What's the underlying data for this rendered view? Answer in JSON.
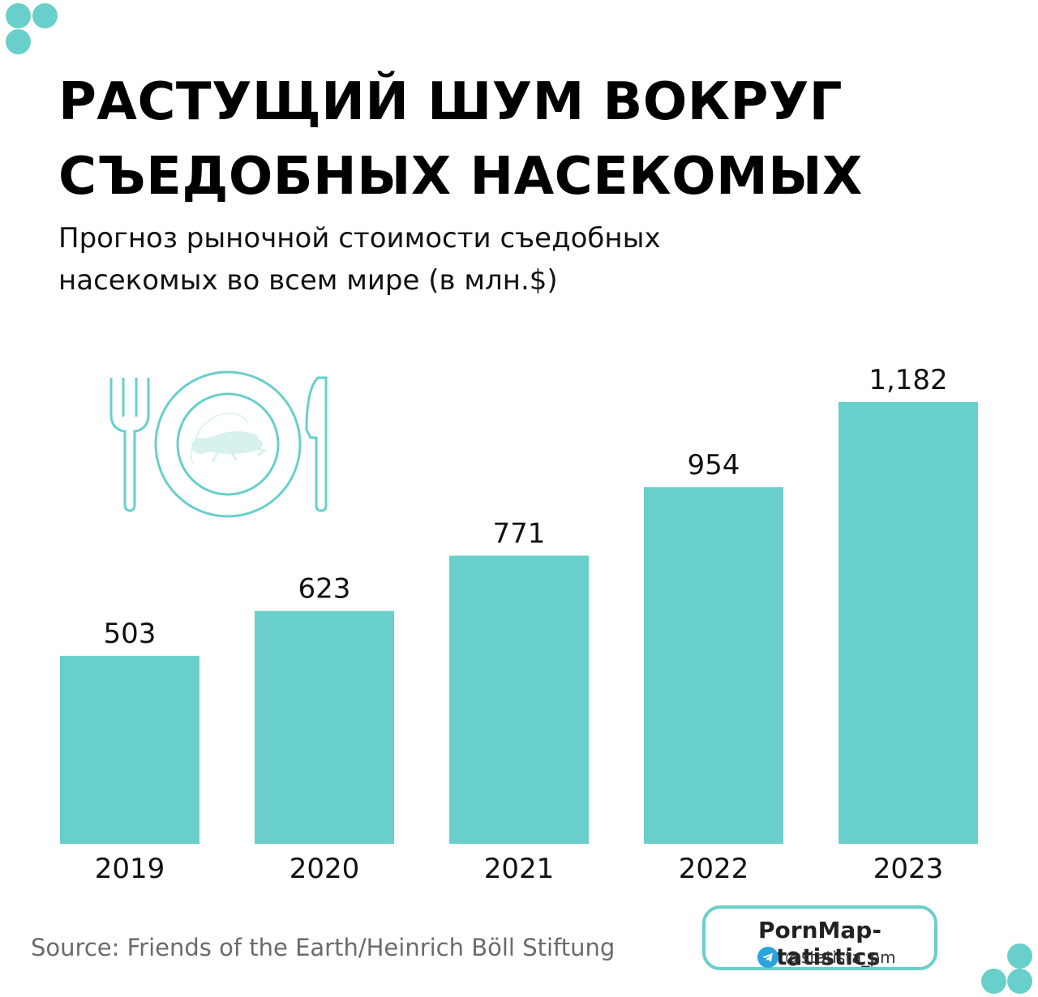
{
  "header": {
    "title_line1": "РАСТУЩИЙ ШУМ ВОКРУГ",
    "title_line2": "СЪЕДОБНЫХ НАСЕКОМЫХ",
    "subtitle_line1": "Прогноз рыночной стоимости съедобных",
    "subtitle_line2": "насекомых во всем мире (в млн.$)"
  },
  "chart_data": {
    "type": "bar",
    "categories": [
      "2019",
      "2020",
      "2021",
      "2022",
      "2023"
    ],
    "values": [
      503,
      623,
      771,
      954,
      1182
    ],
    "value_labels": [
      "503",
      "623",
      "771",
      "954",
      "1,182"
    ],
    "title": "РАСТУЩИЙ ШУМ ВОКРУГ СЪЕДОБНЫХ НАСЕКОМЫХ",
    "subtitle": "Прогноз рыночной стоимости съедобных насекомых во всем мире (в млн.$)",
    "xlabel": "",
    "ylabel": "",
    "ylim": [
      0,
      1182
    ],
    "grid": false,
    "legend": "none",
    "bar_color": "#69cfca"
  },
  "decoration": {
    "icon": "plate-with-cricket-icon",
    "dots_color": "#69cfca"
  },
  "footer": {
    "source": "Source: Friends of the Earth/Heinrich Böll Stiftung",
    "badge_title": "PornMap-Statistics",
    "badge_handle": "@statista_pm",
    "badge_icon": "telegram-icon"
  }
}
